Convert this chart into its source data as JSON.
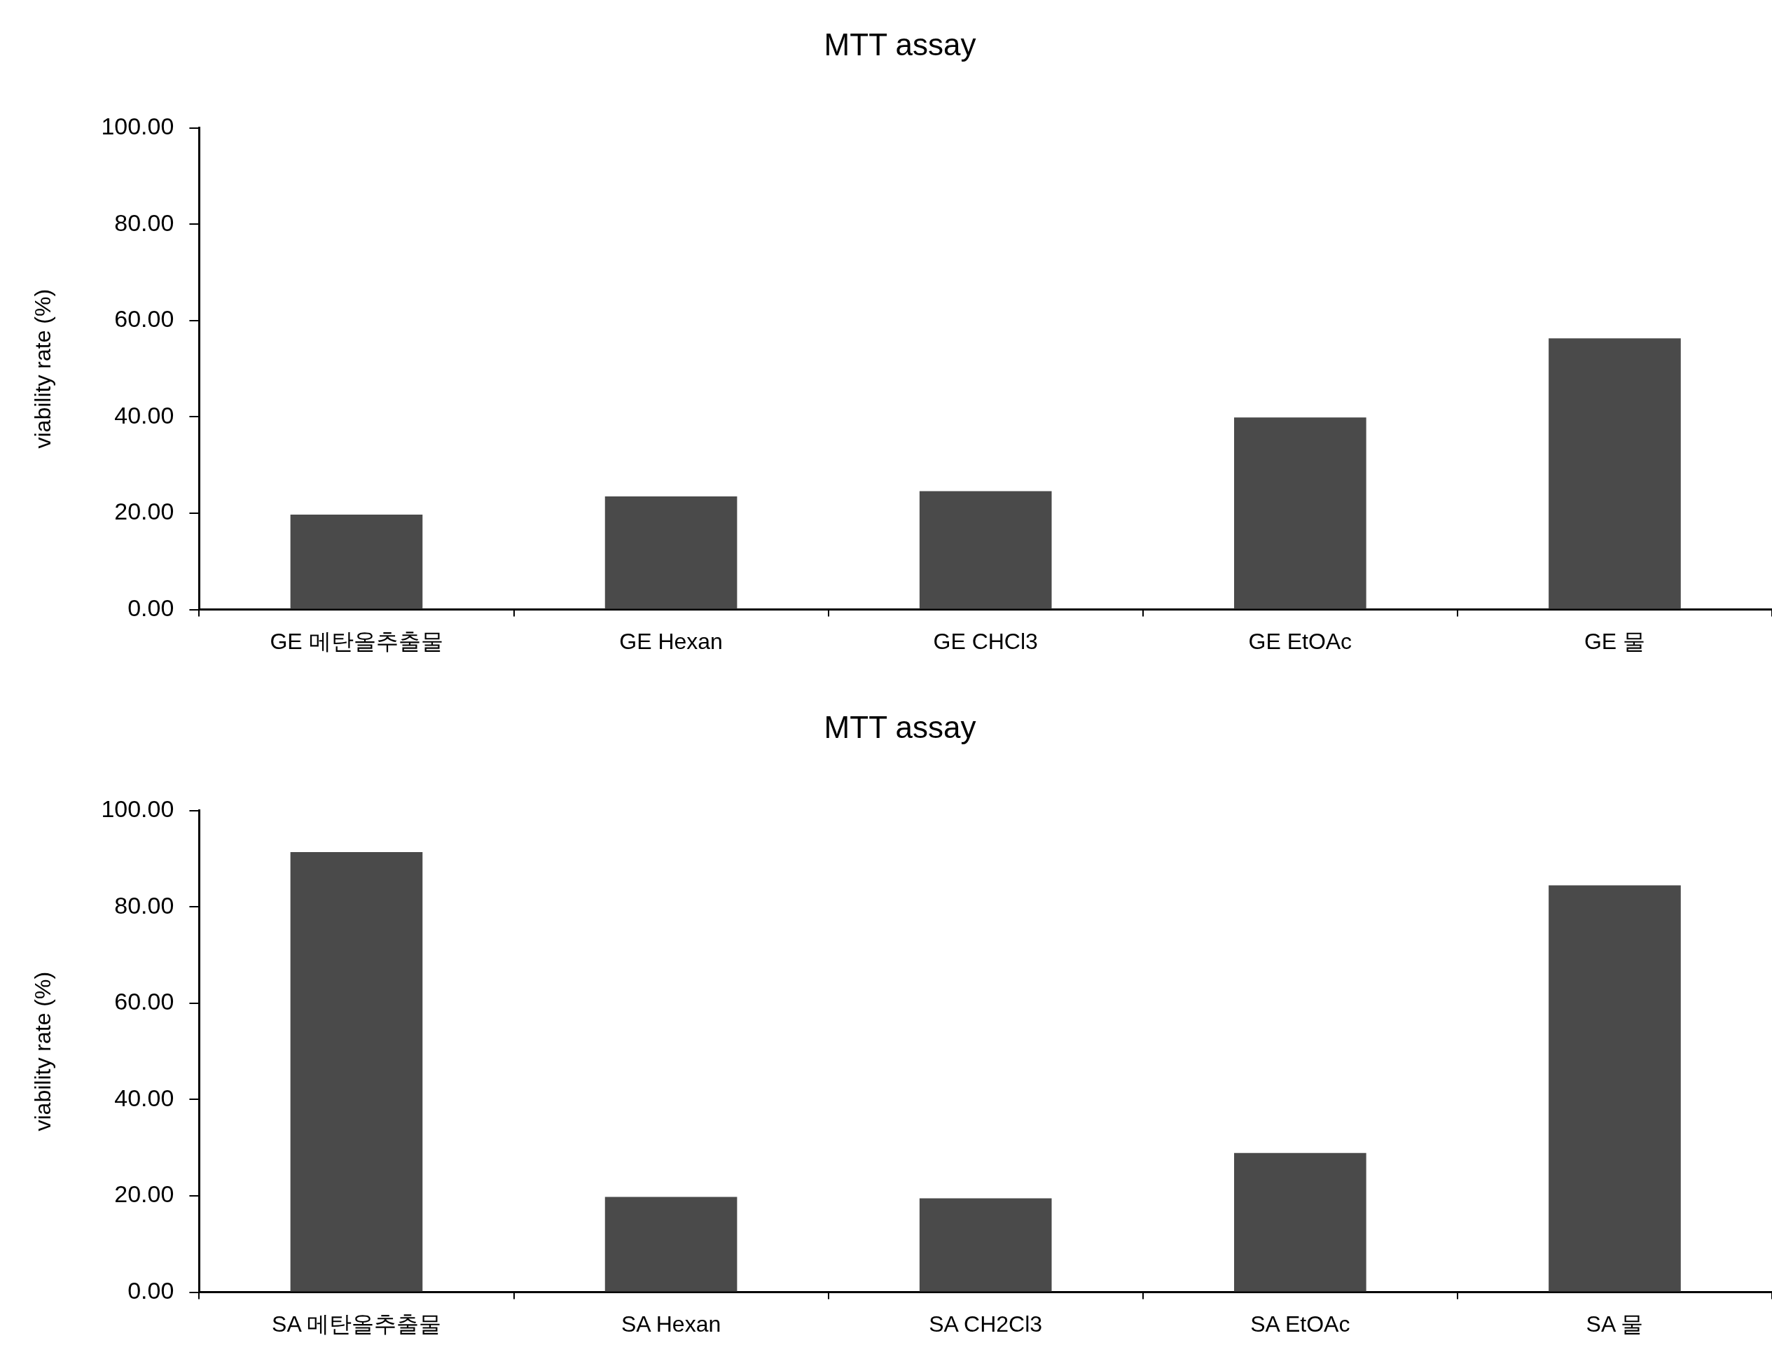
{
  "chart_data": [
    {
      "type": "bar",
      "title": "MTT assay",
      "ylabel": "viability rate (%)",
      "categories": [
        "GE 메탄올추출물",
        "GE Hexan",
        "GE CHCl3",
        "GE EtOAc",
        "GE 물"
      ],
      "values": [
        19.7,
        23.5,
        24.6,
        39.9,
        56.3
      ],
      "color": "#4a4a4a",
      "ylim": [
        0,
        100
      ],
      "yticks": [
        {
          "value": 0,
          "label": "0.00"
        },
        {
          "value": 20,
          "label": "20.00"
        },
        {
          "value": 40,
          "label": "40.00"
        },
        {
          "value": 60,
          "label": "60.00"
        },
        {
          "value": 80,
          "label": "80.00"
        },
        {
          "value": 100,
          "label": "100.00"
        }
      ],
      "grid": false,
      "legend": false
    },
    {
      "type": "bar",
      "title": "MTT assay",
      "ylabel": "viability rate (%)",
      "categories": [
        "SA 메탄올추출물",
        "SA Hexan",
        "SA CH2Cl3",
        "SA EtOAc",
        "SA 물"
      ],
      "values": [
        91.4,
        19.8,
        19.5,
        28.9,
        84.5
      ],
      "color": "#4a4a4a",
      "ylim": [
        0,
        100
      ],
      "yticks": [
        {
          "value": 0,
          "label": "0.00"
        },
        {
          "value": 20,
          "label": "20.00"
        },
        {
          "value": 40,
          "label": "40.00"
        },
        {
          "value": 60,
          "label": "60.00"
        },
        {
          "value": 80,
          "label": "80.00"
        },
        {
          "value": 100,
          "label": "100.00"
        }
      ],
      "grid": false,
      "legend": false
    }
  ]
}
